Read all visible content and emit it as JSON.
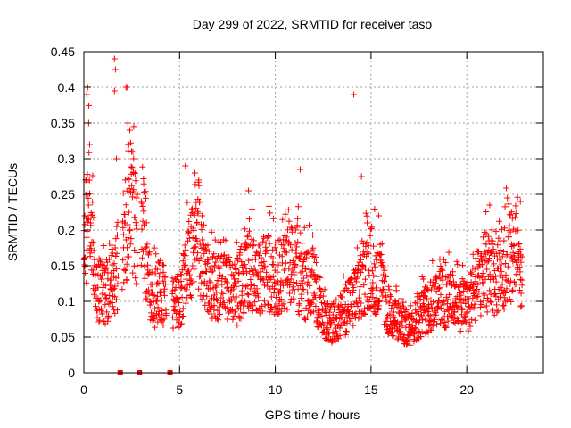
{
  "chart_data": {
    "type": "scatter",
    "title": "Day 299 of 2022, SRMTID for receiver taso",
    "xlabel": "GPS time / hours",
    "ylabel": "SRMTID / TECUs",
    "xlim": [
      0,
      24
    ],
    "ylim": [
      0,
      0.45
    ],
    "x_ticks": [
      "0",
      "5",
      "10",
      "15",
      "20"
    ],
    "y_ticks": [
      "0",
      "0.05",
      "0.1",
      "0.15",
      "0.2",
      "0.25",
      "0.3",
      "0.35",
      "0.4",
      "0.45"
    ],
    "grid": true,
    "marker": "+",
    "color": "#ff0000",
    "series": [
      {
        "name": "SRMTID",
        "profile": [
          [
            0.0,
            0.17
          ],
          [
            0.3,
            0.23
          ],
          [
            0.6,
            0.12
          ],
          [
            1.0,
            0.11
          ],
          [
            1.5,
            0.12
          ],
          [
            2.0,
            0.17
          ],
          [
            2.4,
            0.24
          ],
          [
            2.8,
            0.2
          ],
          [
            3.2,
            0.16
          ],
          [
            3.6,
            0.1
          ],
          [
            4.0,
            0.12
          ],
          [
            4.5,
            0.09
          ],
          [
            5.0,
            0.1
          ],
          [
            5.5,
            0.16
          ],
          [
            6.0,
            0.18
          ],
          [
            6.5,
            0.13
          ],
          [
            7.0,
            0.12
          ],
          [
            7.5,
            0.12
          ],
          [
            8.0,
            0.11
          ],
          [
            8.5,
            0.15
          ],
          [
            9.0,
            0.13
          ],
          [
            9.5,
            0.15
          ],
          [
            10.0,
            0.13
          ],
          [
            10.5,
            0.14
          ],
          [
            11.0,
            0.15
          ],
          [
            11.5,
            0.12
          ],
          [
            12.0,
            0.13
          ],
          [
            12.5,
            0.07
          ],
          [
            13.0,
            0.07
          ],
          [
            13.5,
            0.08
          ],
          [
            14.0,
            0.1
          ],
          [
            14.5,
            0.12
          ],
          [
            15.0,
            0.15
          ],
          [
            15.5,
            0.12
          ],
          [
            16.0,
            0.08
          ],
          [
            16.5,
            0.07
          ],
          [
            17.0,
            0.06
          ],
          [
            17.5,
            0.08
          ],
          [
            18.0,
            0.09
          ],
          [
            18.5,
            0.11
          ],
          [
            19.0,
            0.1
          ],
          [
            19.5,
            0.1
          ],
          [
            20.0,
            0.09
          ],
          [
            20.5,
            0.12
          ],
          [
            21.0,
            0.14
          ],
          [
            21.5,
            0.13
          ],
          [
            22.0,
            0.15
          ],
          [
            22.5,
            0.17
          ],
          [
            22.9,
            0.12
          ]
        ],
        "outliers": [
          [
            0.15,
            0.39
          ],
          [
            0.2,
            0.4
          ],
          [
            0.25,
            0.35
          ],
          [
            0.3,
            0.32
          ],
          [
            0.1,
            0.27
          ],
          [
            1.6,
            0.44
          ],
          [
            1.65,
            0.425
          ],
          [
            1.6,
            0.395
          ],
          [
            2.2,
            0.4
          ],
          [
            2.25,
            0.4
          ],
          [
            2.3,
            0.35
          ],
          [
            2.4,
            0.34
          ],
          [
            2.3,
            0.32
          ],
          [
            1.7,
            0.3
          ],
          [
            2.6,
            0.3
          ],
          [
            2.8,
            0.25
          ],
          [
            3.0,
            0.24
          ],
          [
            5.3,
            0.29
          ],
          [
            5.8,
            0.28
          ],
          [
            6.0,
            0.27
          ],
          [
            8.6,
            0.255
          ],
          [
            11.3,
            0.285
          ],
          [
            14.1,
            0.39
          ],
          [
            14.5,
            0.275
          ],
          [
            14.8,
            0.21
          ],
          [
            15.4,
            0.22
          ],
          [
            21.2,
            0.235
          ],
          [
            22.8,
            0.24
          ],
          [
            0.05,
            0.22
          ],
          [
            0.35,
            0.21
          ]
        ],
        "gaps": [
          [
            1.8,
            2.0
          ],
          [
            2.8,
            3.0
          ],
          [
            4.3,
            4.6
          ]
        ],
        "zero_values": [
          1.9,
          2.9,
          4.5
        ]
      }
    ]
  }
}
